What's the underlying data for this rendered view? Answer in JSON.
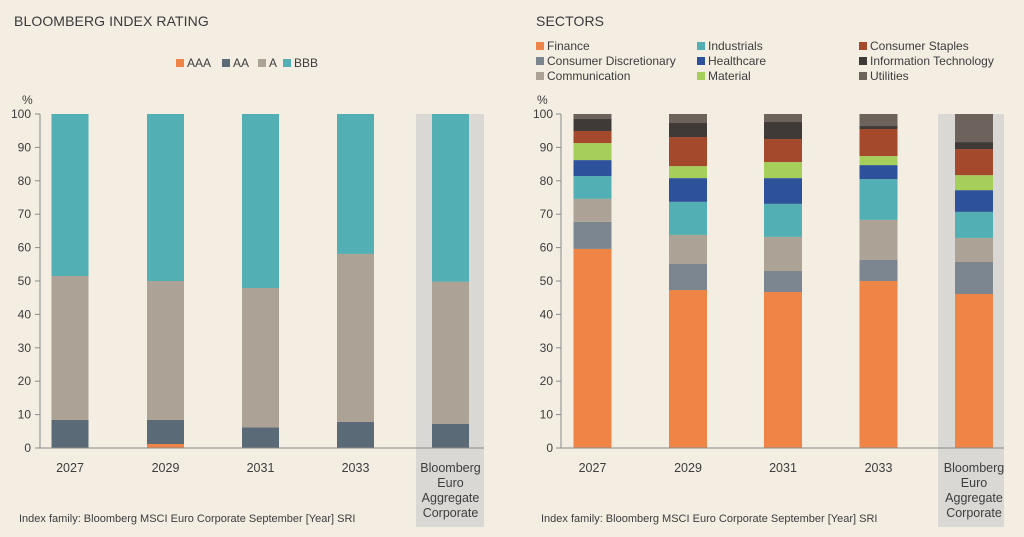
{
  "style": {
    "background": "#f3ede2",
    "text_color": "#3d3d3d",
    "axis_color": "#8a8a8a",
    "highlight_band": "#d9d8d5"
  },
  "chart_data": [
    {
      "type": "bar",
      "stacked": true,
      "title": "BLOOMBERG INDEX RATING",
      "xlabel": "",
      "ylabel": "%",
      "ylim": [
        0,
        100
      ],
      "yticks": [
        0,
        10,
        20,
        30,
        40,
        50,
        60,
        70,
        80,
        90,
        100
      ],
      "grid": false,
      "legend_position": "top",
      "categories": [
        "2027",
        "2029",
        "2031",
        "2033",
        "Bloomberg Euro Aggregate Corporate"
      ],
      "highlighted_category": "Bloomberg Euro Aggregate Corporate",
      "series": [
        {
          "name": "AAA",
          "color": "#ef8447",
          "values": [
            0,
            1.2,
            0,
            0,
            0
          ]
        },
        {
          "name": "AA",
          "color": "#5b6a77",
          "values": [
            8.4,
            7.2,
            6.2,
            7.8,
            7.2
          ]
        },
        {
          "name": "A",
          "color": "#aca295",
          "values": [
            43.1,
            41.6,
            41.7,
            50.3,
            42.6
          ]
        },
        {
          "name": "BBB",
          "color": "#52afb3",
          "values": [
            48.5,
            50.0,
            52.1,
            41.9,
            50.2
          ]
        }
      ],
      "note": "Index family: Bloomberg MSCI Euro Corporate September [Year] SRI"
    },
    {
      "type": "bar",
      "stacked": true,
      "title": "SECTORS",
      "xlabel": "",
      "ylabel": "%",
      "ylim": [
        0,
        100
      ],
      "yticks": [
        0,
        10,
        20,
        30,
        40,
        50,
        60,
        70,
        80,
        90,
        100
      ],
      "grid": false,
      "legend_position": "top",
      "categories": [
        "2027",
        "2029",
        "2031",
        "2033",
        "Bloomberg Euro Aggregate Corporate"
      ],
      "highlighted_category": "Bloomberg Euro Aggregate Corporate",
      "series": [
        {
          "name": "Finance",
          "color": "#ef8447",
          "values": [
            59.6,
            47.3,
            46.7,
            50.0,
            46.1
          ]
        },
        {
          "name": "Consumer Discretionary",
          "color": "#7c8690",
          "values": [
            8.1,
            7.8,
            6.3,
            6.3,
            9.6
          ]
        },
        {
          "name": "Communication",
          "color": "#aca295",
          "values": [
            6.9,
            8.7,
            10.2,
            12.0,
            7.2
          ]
        },
        {
          "name": "Industrials",
          "color": "#52afb3",
          "values": [
            6.8,
            9.9,
            9.9,
            12.2,
            7.8
          ]
        },
        {
          "name": "Healthcare",
          "color": "#2e519b",
          "values": [
            4.8,
            7.1,
            7.7,
            4.2,
            6.5
          ]
        },
        {
          "name": "Material",
          "color": "#a6ce5a",
          "values": [
            5.1,
            3.6,
            4.8,
            2.7,
            4.5
          ]
        },
        {
          "name": "Consumer Staples",
          "color": "#a4492b",
          "values": [
            3.6,
            8.7,
            6.9,
            8.1,
            7.8
          ]
        },
        {
          "name": "Information Technology",
          "color": "#3f3a38",
          "values": [
            3.6,
            4.2,
            5.1,
            0.9,
            2.1
          ]
        },
        {
          "name": "Utilities",
          "color": "#6d625c",
          "values": [
            1.5,
            2.7,
            2.4,
            3.6,
            8.4
          ]
        }
      ],
      "note": "Index family: Bloomberg MSCI Euro Corporate September [Year] SRI"
    }
  ]
}
